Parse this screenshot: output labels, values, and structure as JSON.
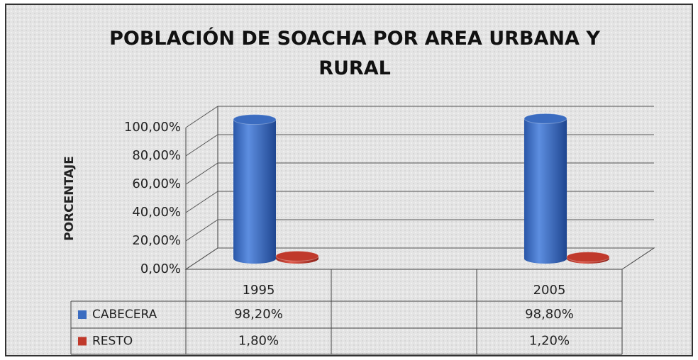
{
  "chart_data": {
    "type": "bar3d",
    "title": "POBLACIÓN DE SOACHA POR AREA URBANA Y RURAL",
    "y_label": "PORCENTAJE",
    "categories": [
      "1995",
      null,
      "2005"
    ],
    "series": [
      {
        "name": "CABECERA",
        "color": "#3b6cc0",
        "values": [
          98.2,
          null,
          98.8
        ],
        "value_labels": [
          "98,20%",
          null,
          "98,80%"
        ]
      },
      {
        "name": "RESTO",
        "color": "#c0392b",
        "values": [
          1.8,
          null,
          1.2
        ],
        "value_labels": [
          "1,80%",
          null,
          "1,20%"
        ]
      }
    ],
    "ylim": [
      0,
      100
    ],
    "yticks": [
      {
        "value": 0,
        "label": "0,00%"
      },
      {
        "value": 20,
        "label": "20,00%"
      },
      {
        "value": 40,
        "label": "40,00%"
      },
      {
        "value": 60,
        "label": "60,00%"
      },
      {
        "value": 80,
        "label": "80,00%"
      },
      {
        "value": 100,
        "label": "100,00%"
      }
    ],
    "grid": true,
    "data_table": true
  }
}
